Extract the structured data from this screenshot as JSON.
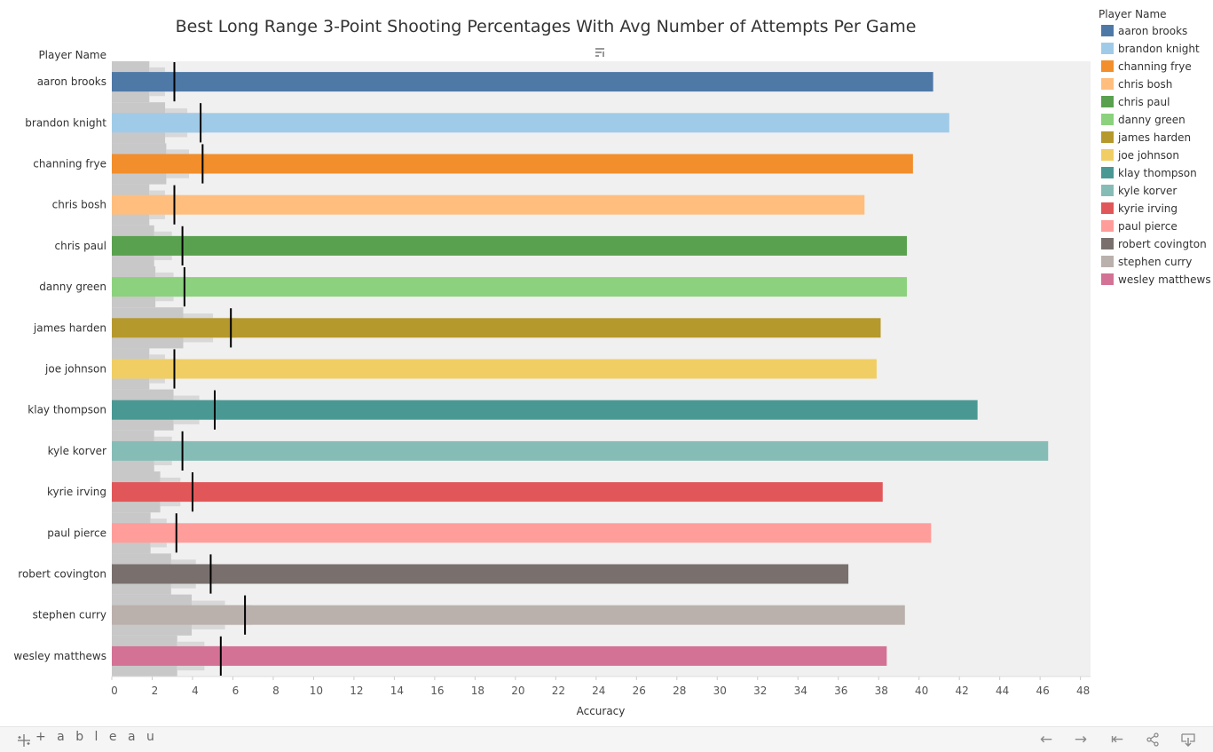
{
  "chart_data": {
    "type": "bar",
    "title": "Best Long Range 3-Point Shooting Percentages With Avg Number of Attempts Per Game",
    "row_header": "Player Name",
    "xlabel": "Accuracy",
    "xlim": [
      0,
      48.5
    ],
    "x_ticks": [
      0,
      2,
      4,
      6,
      8,
      10,
      12,
      14,
      16,
      18,
      20,
      22,
      24,
      26,
      28,
      30,
      32,
      34,
      36,
      38,
      40,
      42,
      44,
      46,
      48
    ],
    "grid": false,
    "legend": {
      "title": "Player Name",
      "position": "right"
    },
    "categories": [
      "aaron brooks",
      "brandon knight",
      "channing frye",
      "chris bosh",
      "chris paul",
      "danny green",
      "james harden",
      "joe johnson",
      "klay thompson",
      "kyle korver",
      "kyrie irving",
      "paul pierce",
      "robert covington",
      "stephen curry",
      "wesley matthews"
    ],
    "series": [
      {
        "name": "Accuracy",
        "values": [
          40.7,
          41.5,
          39.7,
          37.3,
          39.4,
          39.4,
          38.1,
          37.9,
          42.9,
          46.4,
          38.2,
          40.6,
          36.5,
          39.3,
          38.4
        ]
      }
    ],
    "avg_attempts_per_game": [
      3.1,
      4.4,
      4.5,
      3.1,
      3.5,
      3.6,
      5.9,
      3.1,
      5.1,
      3.5,
      4.0,
      3.2,
      4.9,
      6.6,
      5.4
    ],
    "colors": [
      "#4e79a7",
      "#a0cbe8",
      "#f28e2b",
      "#ffbe7d",
      "#59a14f",
      "#8cd17d",
      "#b6992d",
      "#f1ce63",
      "#499894",
      "#86bcb6",
      "#e15759",
      "#ff9d9a",
      "#79706e",
      "#bab0ac",
      "#d37295"
    ]
  },
  "toolbar": {
    "brand": "+ a b l e a u",
    "undo_icon": "←",
    "redo_icon": "→",
    "revert_icon": "⇤",
    "share_icon": "share-icon",
    "download_icon": "download-icon"
  },
  "sort_icon": "≡"
}
